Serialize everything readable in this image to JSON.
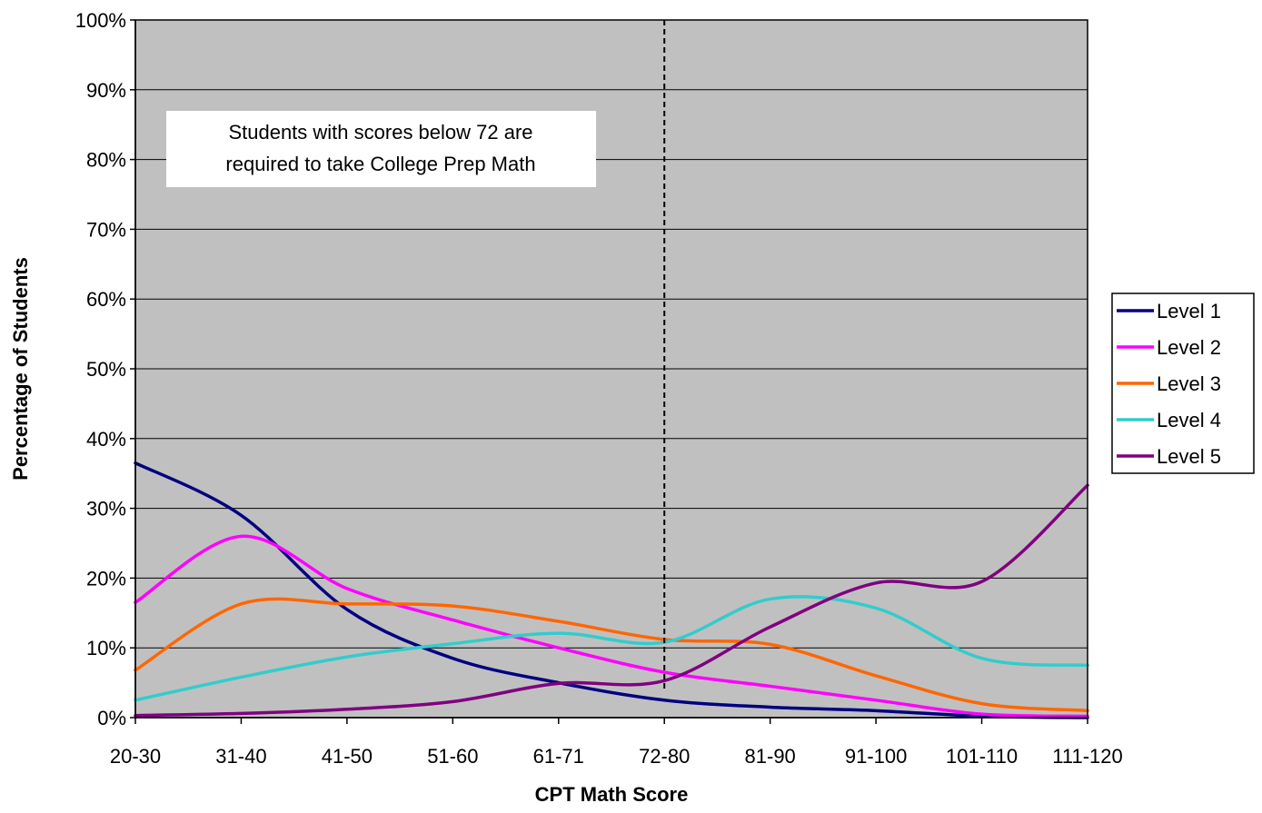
{
  "chart_data": {
    "type": "line",
    "title": "",
    "xlabel": "CPT Math Score",
    "ylabel": "Percentage of Students",
    "categories": [
      "20-30",
      "31-40",
      "41-50",
      "51-60",
      "61-71",
      "72-80",
      "81-90",
      "91-100",
      "101-110",
      "111-120"
    ],
    "ylim": [
      0,
      100
    ],
    "yticks": [
      0,
      10,
      20,
      30,
      40,
      50,
      60,
      70,
      80,
      90,
      100
    ],
    "ytick_labels": [
      "0%",
      "10%",
      "20%",
      "30%",
      "40%",
      "50%",
      "60%",
      "70%",
      "80%",
      "90%",
      "100%"
    ],
    "grid": "horizontal",
    "legend_position": "right",
    "plot_background": "#c0c0c0",
    "series": [
      {
        "name": "Level 1",
        "color": "#000080",
        "values": [
          36.5,
          29,
          15.5,
          8.5,
          5,
          2.5,
          1.5,
          1,
          0.2,
          0
        ]
      },
      {
        "name": "Level 2",
        "color": "#ff00ff",
        "values": [
          16.5,
          26,
          18.5,
          14,
          10,
          6.5,
          4.5,
          2.5,
          0.5,
          0.2
        ]
      },
      {
        "name": "Level 3",
        "color": "#ff6600",
        "values": [
          6.8,
          16.3,
          16.3,
          16,
          13.8,
          11.2,
          10.5,
          6,
          2,
          1
        ]
      },
      {
        "name": "Level 4",
        "color": "#33cccc",
        "values": [
          2.5,
          5.8,
          8.7,
          10.6,
          12.1,
          10.8,
          17,
          15.7,
          8.5,
          7.5
        ]
      },
      {
        "name": "Level 5",
        "color": "#800080",
        "values": [
          0.3,
          0.6,
          1.2,
          2.3,
          4.9,
          5.3,
          13,
          19.3,
          19.5,
          33.3
        ]
      }
    ],
    "reference_line": {
      "between": [
        "61-71",
        "72-80"
      ],
      "at_category": "72-80",
      "style": "dashed"
    },
    "annotation": {
      "line1": "Students with scores below 72 are",
      "line2": "required to take College Prep Math"
    }
  }
}
